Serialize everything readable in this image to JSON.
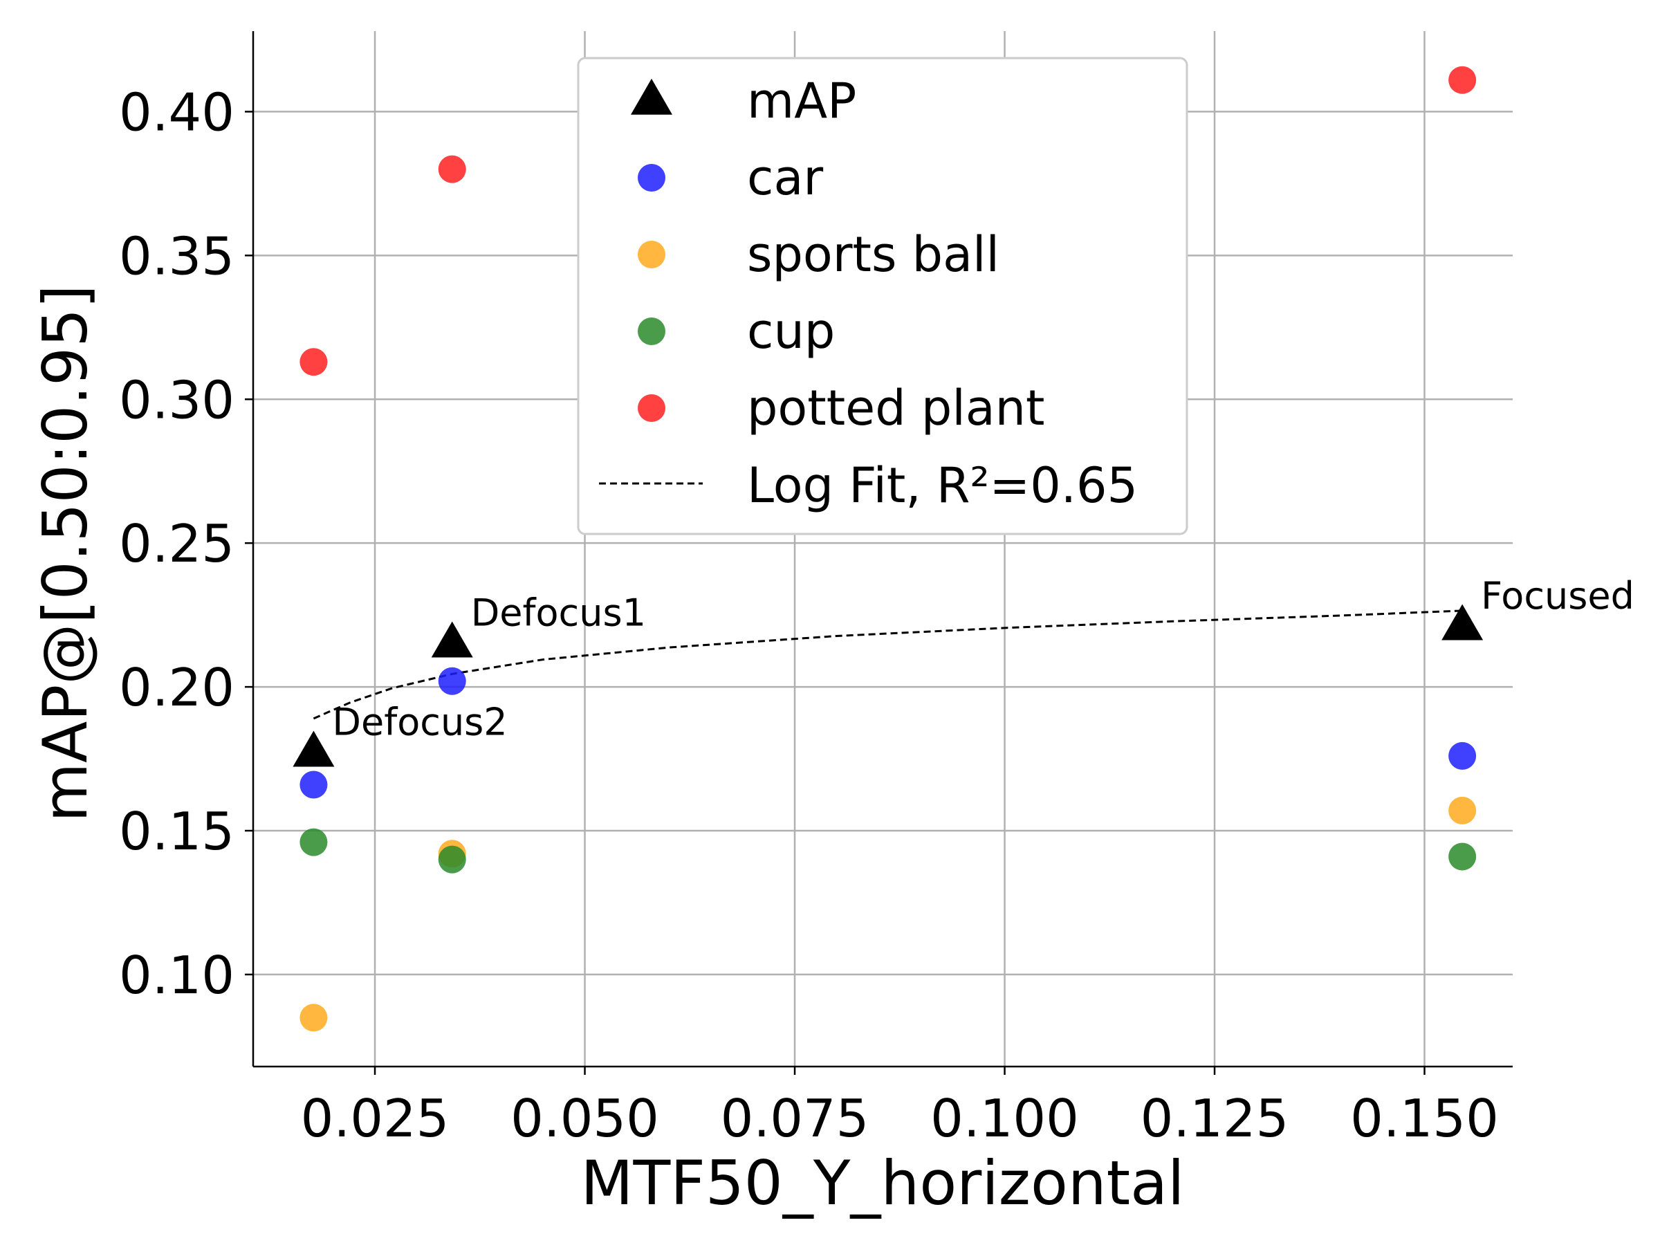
{
  "chart_data": {
    "type": "scatter",
    "title": "",
    "xlabel": "MTF50_Y_horizontal",
    "ylabel": "mAP@[0.50:0.95]",
    "xlim": [
      0.0105,
      0.1605
    ],
    "ylim": [
      0.068,
      0.428
    ],
    "x_ticks": [
      0.025,
      0.05,
      0.075,
      0.1,
      0.125,
      0.15
    ],
    "x_tick_labels": [
      "0.025",
      "0.050",
      "0.075",
      "0.100",
      "0.125",
      "0.150"
    ],
    "y_ticks": [
      0.1,
      0.15,
      0.2,
      0.25,
      0.3,
      0.35,
      0.4
    ],
    "y_tick_labels": [
      "0.10",
      "0.15",
      "0.20",
      "0.25",
      "0.30",
      "0.35",
      "0.40"
    ],
    "grid": true,
    "legend_position": "upper-center",
    "x": [
      0.0177,
      0.0342,
      0.1545
    ],
    "series": [
      {
        "name": "mAP",
        "marker": "triangle",
        "color": "#000000",
        "values": [
          0.177,
          0.215,
          0.221
        ]
      },
      {
        "name": "car",
        "marker": "circle",
        "color": "#1f1fff",
        "values": [
          0.166,
          0.202,
          0.176
        ]
      },
      {
        "name": "sports ball",
        "marker": "circle",
        "color": "#ffaa1f",
        "values": [
          0.085,
          0.142,
          0.157
        ]
      },
      {
        "name": "cup",
        "marker": "circle",
        "color": "#2a8a2a",
        "values": [
          0.146,
          0.14,
          0.141
        ]
      },
      {
        "name": "potted plant",
        "marker": "circle",
        "color": "#ff2020",
        "values": [
          0.313,
          0.38,
          0.411
        ]
      }
    ],
    "fit": {
      "name": "Log Fit, R²=0.65",
      "style": "dashed",
      "color": "#000000",
      "x": [
        0.0177,
        0.022,
        0.027,
        0.0342,
        0.045,
        0.06,
        0.08,
        0.1,
        0.12,
        0.14,
        0.1545
      ],
      "y": [
        0.189,
        0.1945,
        0.1995,
        0.2045,
        0.2095,
        0.2137,
        0.2177,
        0.2205,
        0.2228,
        0.2248,
        0.2265
      ]
    },
    "annotations": [
      {
        "text": "Defocus2",
        "x": 0.0177,
        "y": 0.177
      },
      {
        "text": "Defocus1",
        "x": 0.0342,
        "y": 0.215
      },
      {
        "text": "Focused",
        "x": 0.1545,
        "y": 0.221
      }
    ]
  }
}
